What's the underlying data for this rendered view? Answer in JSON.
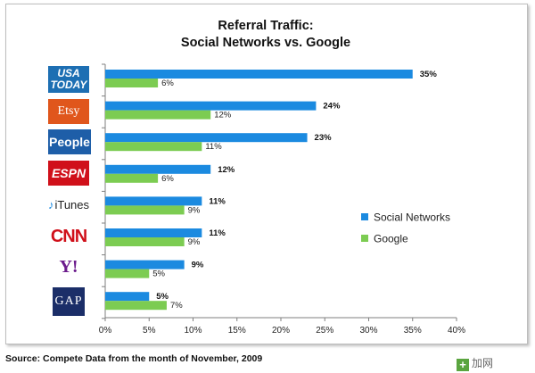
{
  "chart_data": {
    "type": "bar",
    "orientation": "horizontal",
    "title": "Referral Traffic:\nSocial Networks vs. Google",
    "categories": [
      "USA TODAY",
      "Etsy",
      "People",
      "ESPN",
      "iTunes",
      "CNN",
      "Yahoo!",
      "GAP"
    ],
    "series": [
      {
        "name": "Social Networks",
        "color": "#1b8ae0",
        "values": [
          35,
          24,
          23,
          12,
          11,
          11,
          9,
          5
        ],
        "labels": [
          "35%",
          "24%",
          "23%",
          "12%",
          "11%",
          "11%",
          "9%",
          "5%"
        ]
      },
      {
        "name": "Google",
        "color": "#7ccc52",
        "values": [
          6,
          12,
          11,
          6,
          9,
          9,
          5,
          7
        ],
        "labels": [
          "6%",
          "12%",
          "11%",
          "6%",
          "9%",
          "9%",
          "5%",
          "7%"
        ]
      }
    ],
    "xlim": [
      0,
      40
    ],
    "ticks": [
      0,
      5,
      10,
      15,
      20,
      25,
      30,
      35,
      40
    ],
    "tick_labels": [
      "0%",
      "5%",
      "10%",
      "15%",
      "20%",
      "25%",
      "30%",
      "35%",
      "40%"
    ],
    "grid": false,
    "legend": "right"
  },
  "logos": {
    "usa_line1": "USA",
    "usa_line2": "TODAY",
    "etsy": "Etsy",
    "people": "People",
    "espn": "ESPN",
    "itunes": "iTunes",
    "cnn": "CNN",
    "yahoo": "Y!",
    "gap": "GAP"
  },
  "source": "Source: Compete  Data from the month of November, 2009",
  "watermark": {
    "icon": "+",
    "text": "加网"
  }
}
